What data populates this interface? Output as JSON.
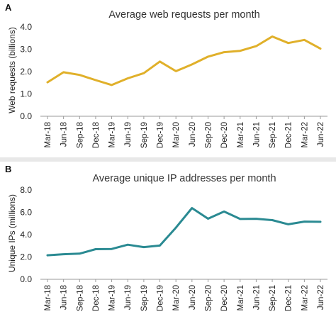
{
  "chart_data": [
    {
      "panel": "A",
      "type": "line",
      "title": "Average web requests per month",
      "xlabel": "",
      "ylabel": "Web requests (billions)",
      "ylim": [
        0.0,
        4.0
      ],
      "yticks": [
        "0.0",
        "1.0",
        "2.0",
        "3.0",
        "4.0"
      ],
      "grid": false,
      "color": "#e0b02a",
      "x": [
        "Mar-18",
        "Jun-18",
        "Sep-18",
        "Dec-18",
        "Mar-19",
        "Jun-19",
        "Sep-19",
        "Dec-19",
        "Mar-20",
        "Jun-20",
        "Sep-20",
        "Dec-20",
        "Mar-21",
        "Jun-21",
        "Sep-21",
        "Dec-21",
        "Mar-22",
        "Jun-22"
      ],
      "series": [
        {
          "values": [
            1.52,
            1.97,
            1.85,
            1.62,
            1.4,
            1.7,
            1.93,
            2.45,
            2.02,
            2.32,
            2.67,
            2.87,
            2.93,
            3.14,
            3.57,
            3.28,
            3.42,
            3.03
          ]
        }
      ]
    },
    {
      "panel": "B",
      "type": "line",
      "title": "Average unique IP addresses per month",
      "xlabel": "",
      "ylabel": "Unique IPs (millions)",
      "ylim": [
        0.0,
        8.0
      ],
      "yticks": [
        "0.0",
        "2.0",
        "4.0",
        "6.0",
        "8.0"
      ],
      "grid": false,
      "color": "#2a8a92",
      "x": [
        "Mar-18",
        "Jun-18",
        "Sep-18",
        "Dec-18",
        "Mar-19",
        "Jun-19",
        "Sep-19",
        "Dec-19",
        "Mar-20",
        "Jun-20",
        "Sep-20",
        "Dec-20",
        "Mar-21",
        "Jun-21",
        "Sep-21",
        "Dec-21",
        "Mar-22",
        "Jun-22"
      ],
      "series": [
        {
          "values": [
            2.15,
            2.25,
            2.3,
            2.7,
            2.72,
            3.1,
            2.88,
            3.02,
            4.63,
            6.38,
            5.43,
            6.07,
            5.4,
            5.42,
            5.3,
            4.93,
            5.17,
            5.15
          ]
        }
      ]
    }
  ]
}
